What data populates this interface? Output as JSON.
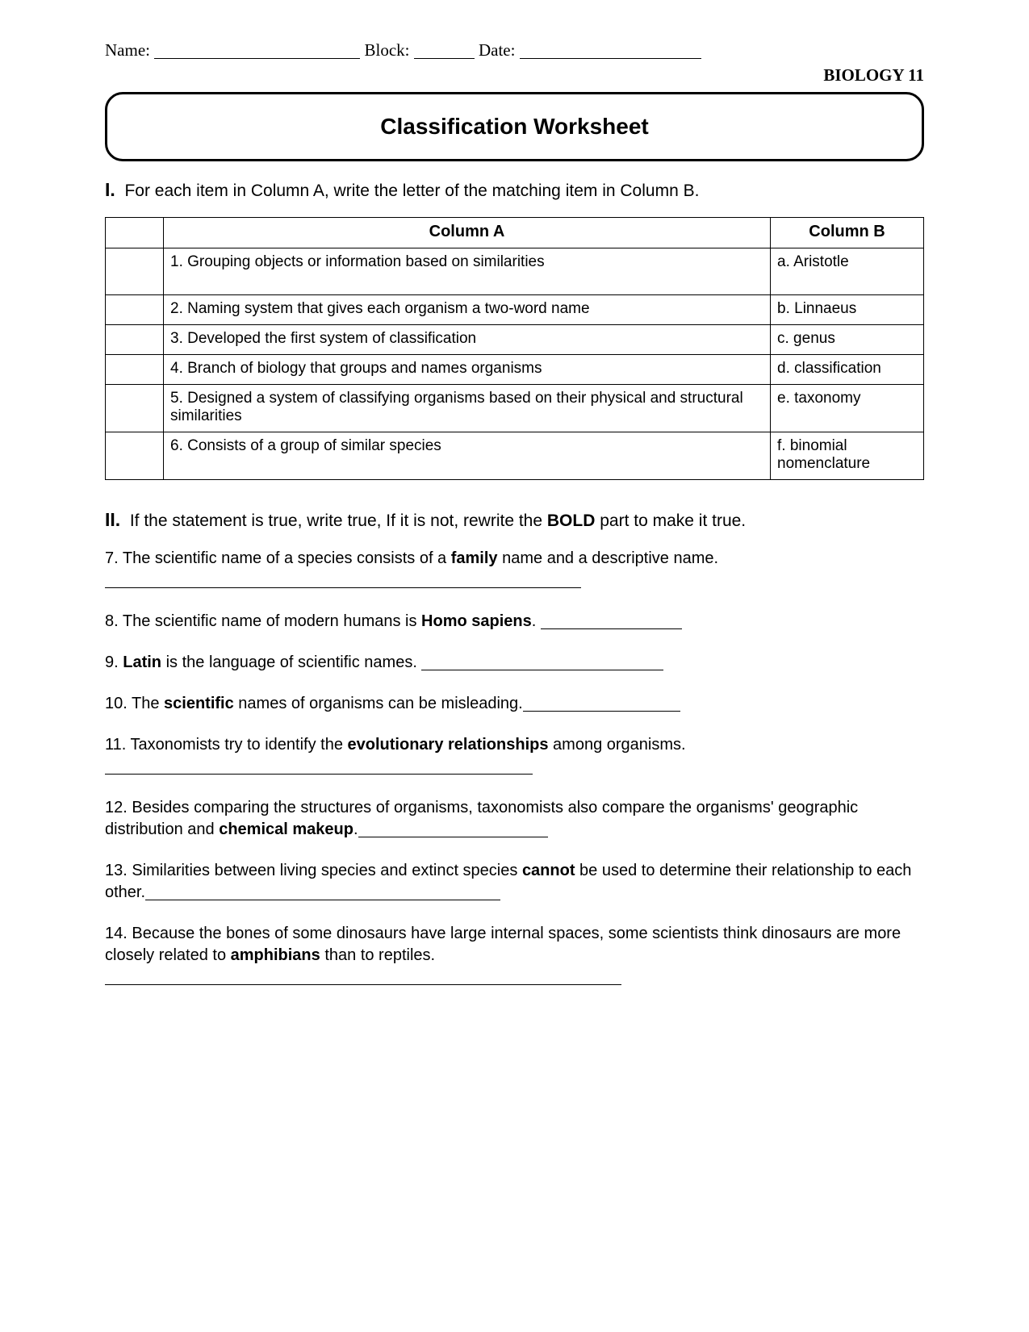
{
  "header": {
    "name_label": "Name:",
    "name_blank_w": 255,
    "block_label": "Block:",
    "block_blank_w": 75,
    "date_label": "Date:",
    "date_blank_w": 225,
    "course": "BIOLOGY 11"
  },
  "title": "Classification Worksheet",
  "section1": {
    "num": "I.",
    "text": "For each item in Column A, write the letter of the matching item in Column B.",
    "colA_head": "Column A",
    "colB_head": "Column B",
    "rows": [
      {
        "a": "1. Grouping objects or information based on similarities",
        "b": "a. Aristotle",
        "tall": true
      },
      {
        "a": "2. Naming system that gives each organism a two-word name",
        "b": "b. Linnaeus"
      },
      {
        "a": "3. Developed the first system of classification",
        "b": "c. genus"
      },
      {
        "a": "4. Branch of biology that groups and names organisms",
        "b": "d. classification"
      },
      {
        "a": "5. Designed a system of classifying organisms based on their physical and structural similarities",
        "b": "e. taxonomy"
      },
      {
        "a": "6. Consists of a group of similar species",
        "b": "f. binomial nomenclature"
      }
    ]
  },
  "section2": {
    "num": "II.",
    "text_pre": "If the statement is true, write true, If it is not, rewrite the ",
    "text_bold": "BOLD",
    "text_post": " part to make it true.",
    "questions": [
      {
        "n": "7",
        "parts": [
          {
            "t": "7. The scientific name of a species consists of a "
          },
          {
            "t": "family",
            "b": true
          },
          {
            "t": " name and a descriptive name."
          }
        ],
        "blank_w": 590,
        "blank_newline": true
      },
      {
        "n": "8",
        "parts": [
          {
            "t": "8. The scientific name of modern humans is "
          },
          {
            "t": "Homo sapiens",
            "b": true
          },
          {
            "t": ". "
          }
        ],
        "blank_w": 175
      },
      {
        "n": "9",
        "parts": [
          {
            "t": "9. "
          },
          {
            "t": "Latin",
            "b": true
          },
          {
            "t": " is the language of scientific names. "
          }
        ],
        "blank_w": 300
      },
      {
        "n": "10",
        "parts": [
          {
            "t": "10. The "
          },
          {
            "t": "scientific",
            "b": true
          },
          {
            "t": " names of organisms can be misleading."
          }
        ],
        "blank_w": 195
      },
      {
        "n": "11",
        "parts": [
          {
            "t": "11. Taxonomists try to identify the "
          },
          {
            "t": "evolutionary relationships",
            "b": true
          },
          {
            "t": " among organisms."
          }
        ],
        "blank_w": 530
      },
      {
        "n": "12",
        "parts": [
          {
            "t": "12. Besides comparing the structures of organisms, taxonomists also compare the organisms' geographic distribution and "
          },
          {
            "t": "chemical makeup",
            "b": true
          },
          {
            "t": "."
          }
        ],
        "blank_w": 235
      },
      {
        "n": "13",
        "parts": [
          {
            "t": "13. Similarities between living species and extinct species "
          },
          {
            "t": "cannot",
            "b": true
          },
          {
            "t": " be used to determine their relationship to each other."
          }
        ],
        "blank_w": 440
      },
      {
        "n": "14",
        "parts": [
          {
            "t": "14. Because the bones of some dinosaurs have large internal spaces, some scientists think dinosaurs are more closely related to "
          },
          {
            "t": "amphibians",
            "b": true
          },
          {
            "t": " than to reptiles."
          }
        ],
        "blank_w": 640,
        "blank_newline": true
      }
    ]
  }
}
